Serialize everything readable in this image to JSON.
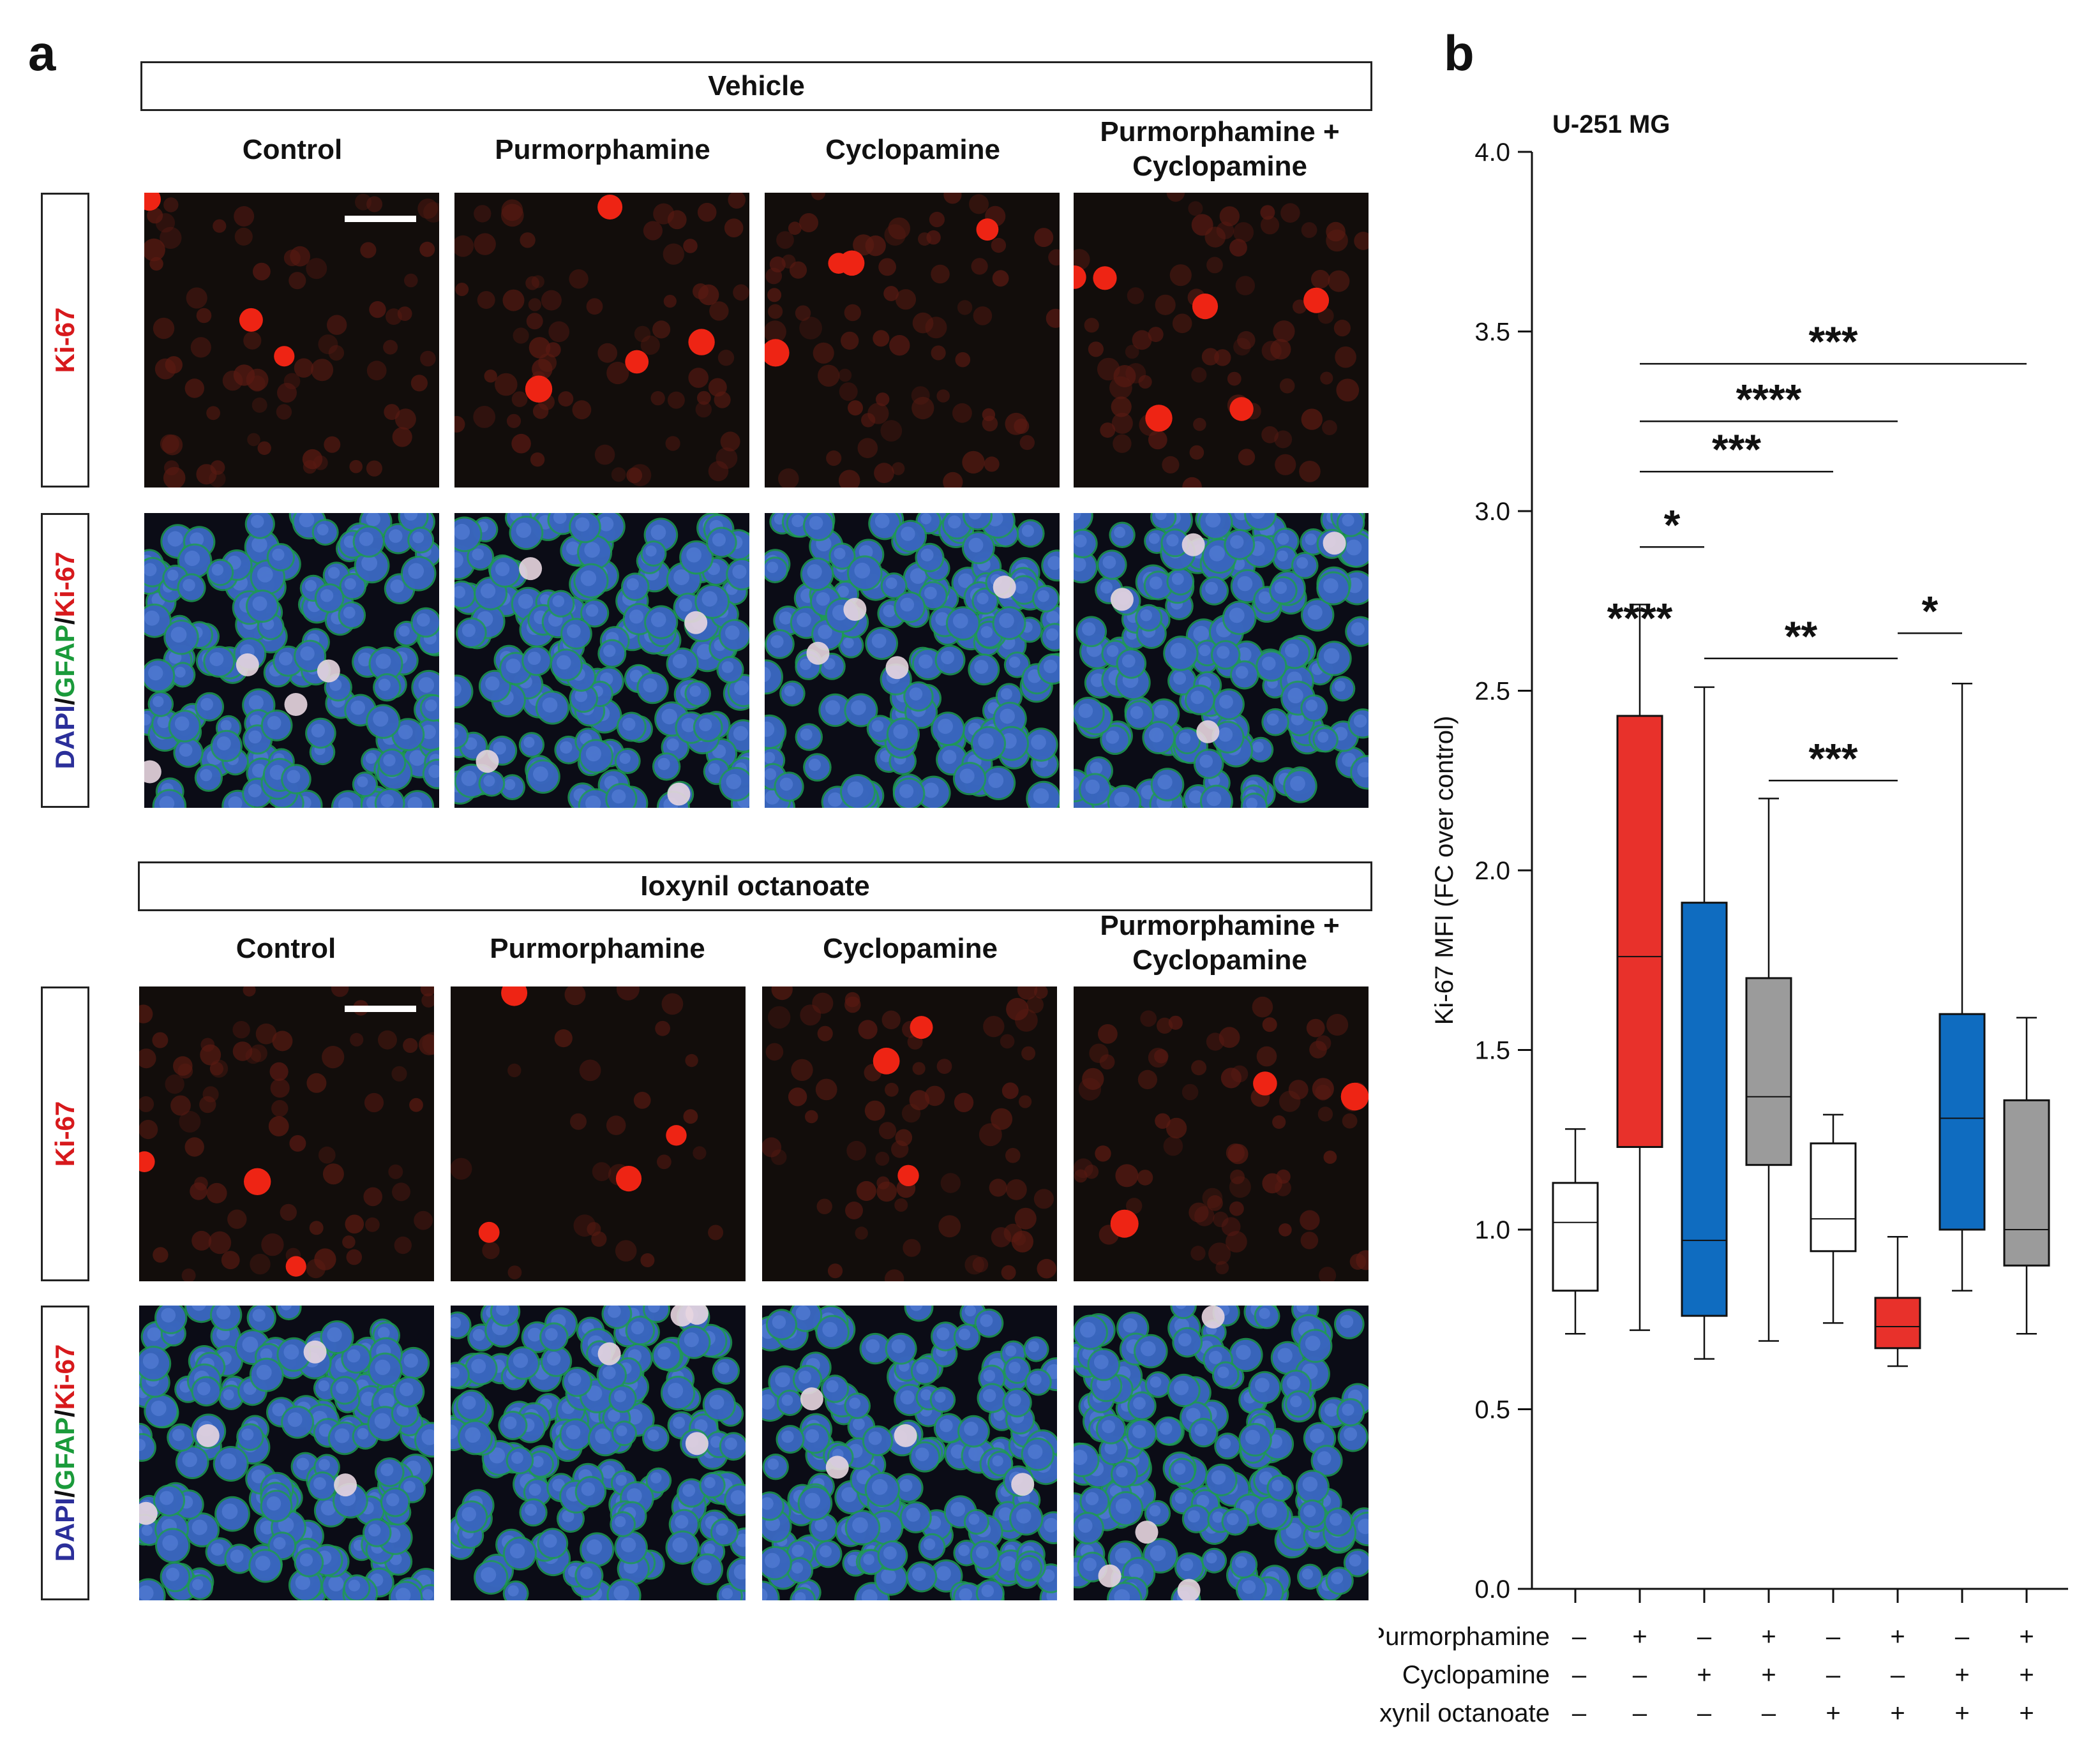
{
  "panel_a": {
    "letter": "a",
    "sections": [
      {
        "treatment": "Vehicle",
        "columns": [
          "Control",
          "Purmorphamine",
          "Cyclopamine",
          "Purmorphamine + Cyclopamine"
        ],
        "rows": [
          "Ki-67",
          "DAPI/GFAP/Ki-67"
        ]
      },
      {
        "treatment": "Ioxynil octanoate",
        "columns": [
          "Control",
          "Purmorphamine",
          "Cyclopamine",
          "Purmorphamine + Cyclopamine"
        ],
        "rows": [
          "Ki-67",
          "DAPI/GFAP/Ki-67"
        ]
      }
    ],
    "stain_labels": {
      "dapi": "DAPI",
      "gfap": "GFAP",
      "ki67": "Ki-67",
      "sep": "/"
    },
    "colors": {
      "ki67": "#d7191c",
      "gfap": "#1a9a3a",
      "dapi": "#2b2f9a"
    }
  },
  "panel_b": {
    "letter": "b",
    "chart_data": {
      "type": "box",
      "title": "U-251 MG",
      "ylabel": "Ki-67 MFI (FC over control)",
      "ylim": [
        0,
        4
      ],
      "yticks": [
        "0.0",
        "0.5",
        "1.0",
        "1.5",
        "2.0",
        "2.5",
        "3.0",
        "3.5",
        "4.0"
      ],
      "conditions": {
        "Purmorphamine": [
          "–",
          "+",
          "–",
          "+",
          "–",
          "+",
          "–",
          "+"
        ],
        "Cyclopamine": [
          "–",
          "–",
          "+",
          "+",
          "–",
          "–",
          "+",
          "+"
        ],
        "Ioxynil octanoate": [
          "–",
          "–",
          "–",
          "–",
          "+",
          "+",
          "+",
          "+"
        ]
      },
      "boxes": [
        {
          "min": 0.71,
          "q1": 0.83,
          "median": 1.02,
          "q3": 1.13,
          "max": 1.28,
          "color": "#ffffff"
        },
        {
          "min": 0.72,
          "q1": 1.23,
          "median": 1.76,
          "q3": 2.43,
          "max": 2.74,
          "color": "#e8312b"
        },
        {
          "min": 0.64,
          "q1": 0.76,
          "median": 0.97,
          "q3": 1.91,
          "max": 2.51,
          "color": "#0f6cc0"
        },
        {
          "min": 0.69,
          "q1": 1.18,
          "median": 1.37,
          "q3": 1.7,
          "max": 2.2,
          "color": "#9b9b9b"
        },
        {
          "min": 0.74,
          "q1": 0.94,
          "median": 1.03,
          "q3": 1.24,
          "max": 1.32,
          "color": "#ffffff"
        },
        {
          "min": 0.62,
          "q1": 0.67,
          "median": 0.73,
          "q3": 0.81,
          "max": 0.98,
          "color": "#e8312b"
        },
        {
          "min": 0.83,
          "q1": 1.0,
          "median": 1.31,
          "q3": 1.6,
          "max": 2.52,
          "color": "#0f6cc0"
        },
        {
          "min": 0.71,
          "q1": 0.9,
          "median": 1.0,
          "q3": 1.36,
          "max": 1.59,
          "color": "#9b9b9b"
        }
      ],
      "significance": [
        {
          "from": 1,
          "to": 1,
          "y": 2.64,
          "label": "****"
        },
        {
          "from": 1,
          "to": 2,
          "y": 2.9,
          "label": "*"
        },
        {
          "from": 1,
          "to": 4,
          "y": 3.11,
          "label": "***"
        },
        {
          "from": 1,
          "to": 5,
          "y": 3.25,
          "label": "****"
        },
        {
          "from": 1,
          "to": 7,
          "y": 3.41,
          "label": "***"
        },
        {
          "from": 2,
          "to": 5,
          "y": 2.59,
          "label": "**"
        },
        {
          "from": 3,
          "to": 5,
          "y": 2.25,
          "label": "***"
        },
        {
          "from": 5,
          "to": 6,
          "y": 2.66,
          "label": "*"
        }
      ]
    }
  }
}
